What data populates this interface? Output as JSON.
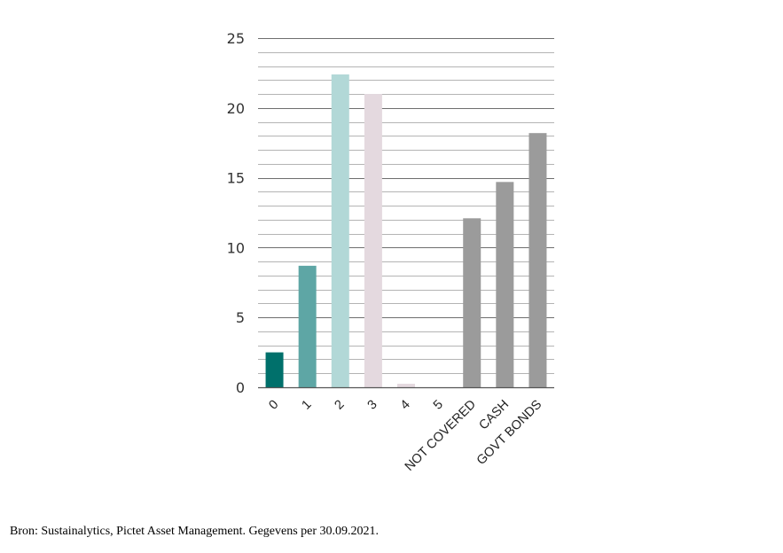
{
  "chart_data": {
    "type": "bar",
    "categories": [
      "0",
      "1",
      "2",
      "3",
      "4",
      "5",
      "NOT COVERED",
      "CASH",
      "GOVT BONDS"
    ],
    "values": [
      2.5,
      8.7,
      22.4,
      21.0,
      0.25,
      0,
      12.1,
      14.7,
      18.2
    ],
    "colors": [
      "#00706b",
      "#5ea6a5",
      "#b2d8d7",
      "#e4d9df",
      "#e4d9df",
      "#e4d9df",
      "#9b9b9b",
      "#9b9b9b",
      "#9b9b9b"
    ],
    "ylim": [
      0,
      25
    ],
    "yticks": [
      0,
      5,
      10,
      15,
      20,
      25
    ],
    "minor_step": 1,
    "grid": true,
    "title": "",
    "xlabel": "",
    "ylabel": ""
  },
  "source_text": "Bron: Sustainalytics, Pictet Asset Management. Gegevens per 30.09.2021."
}
